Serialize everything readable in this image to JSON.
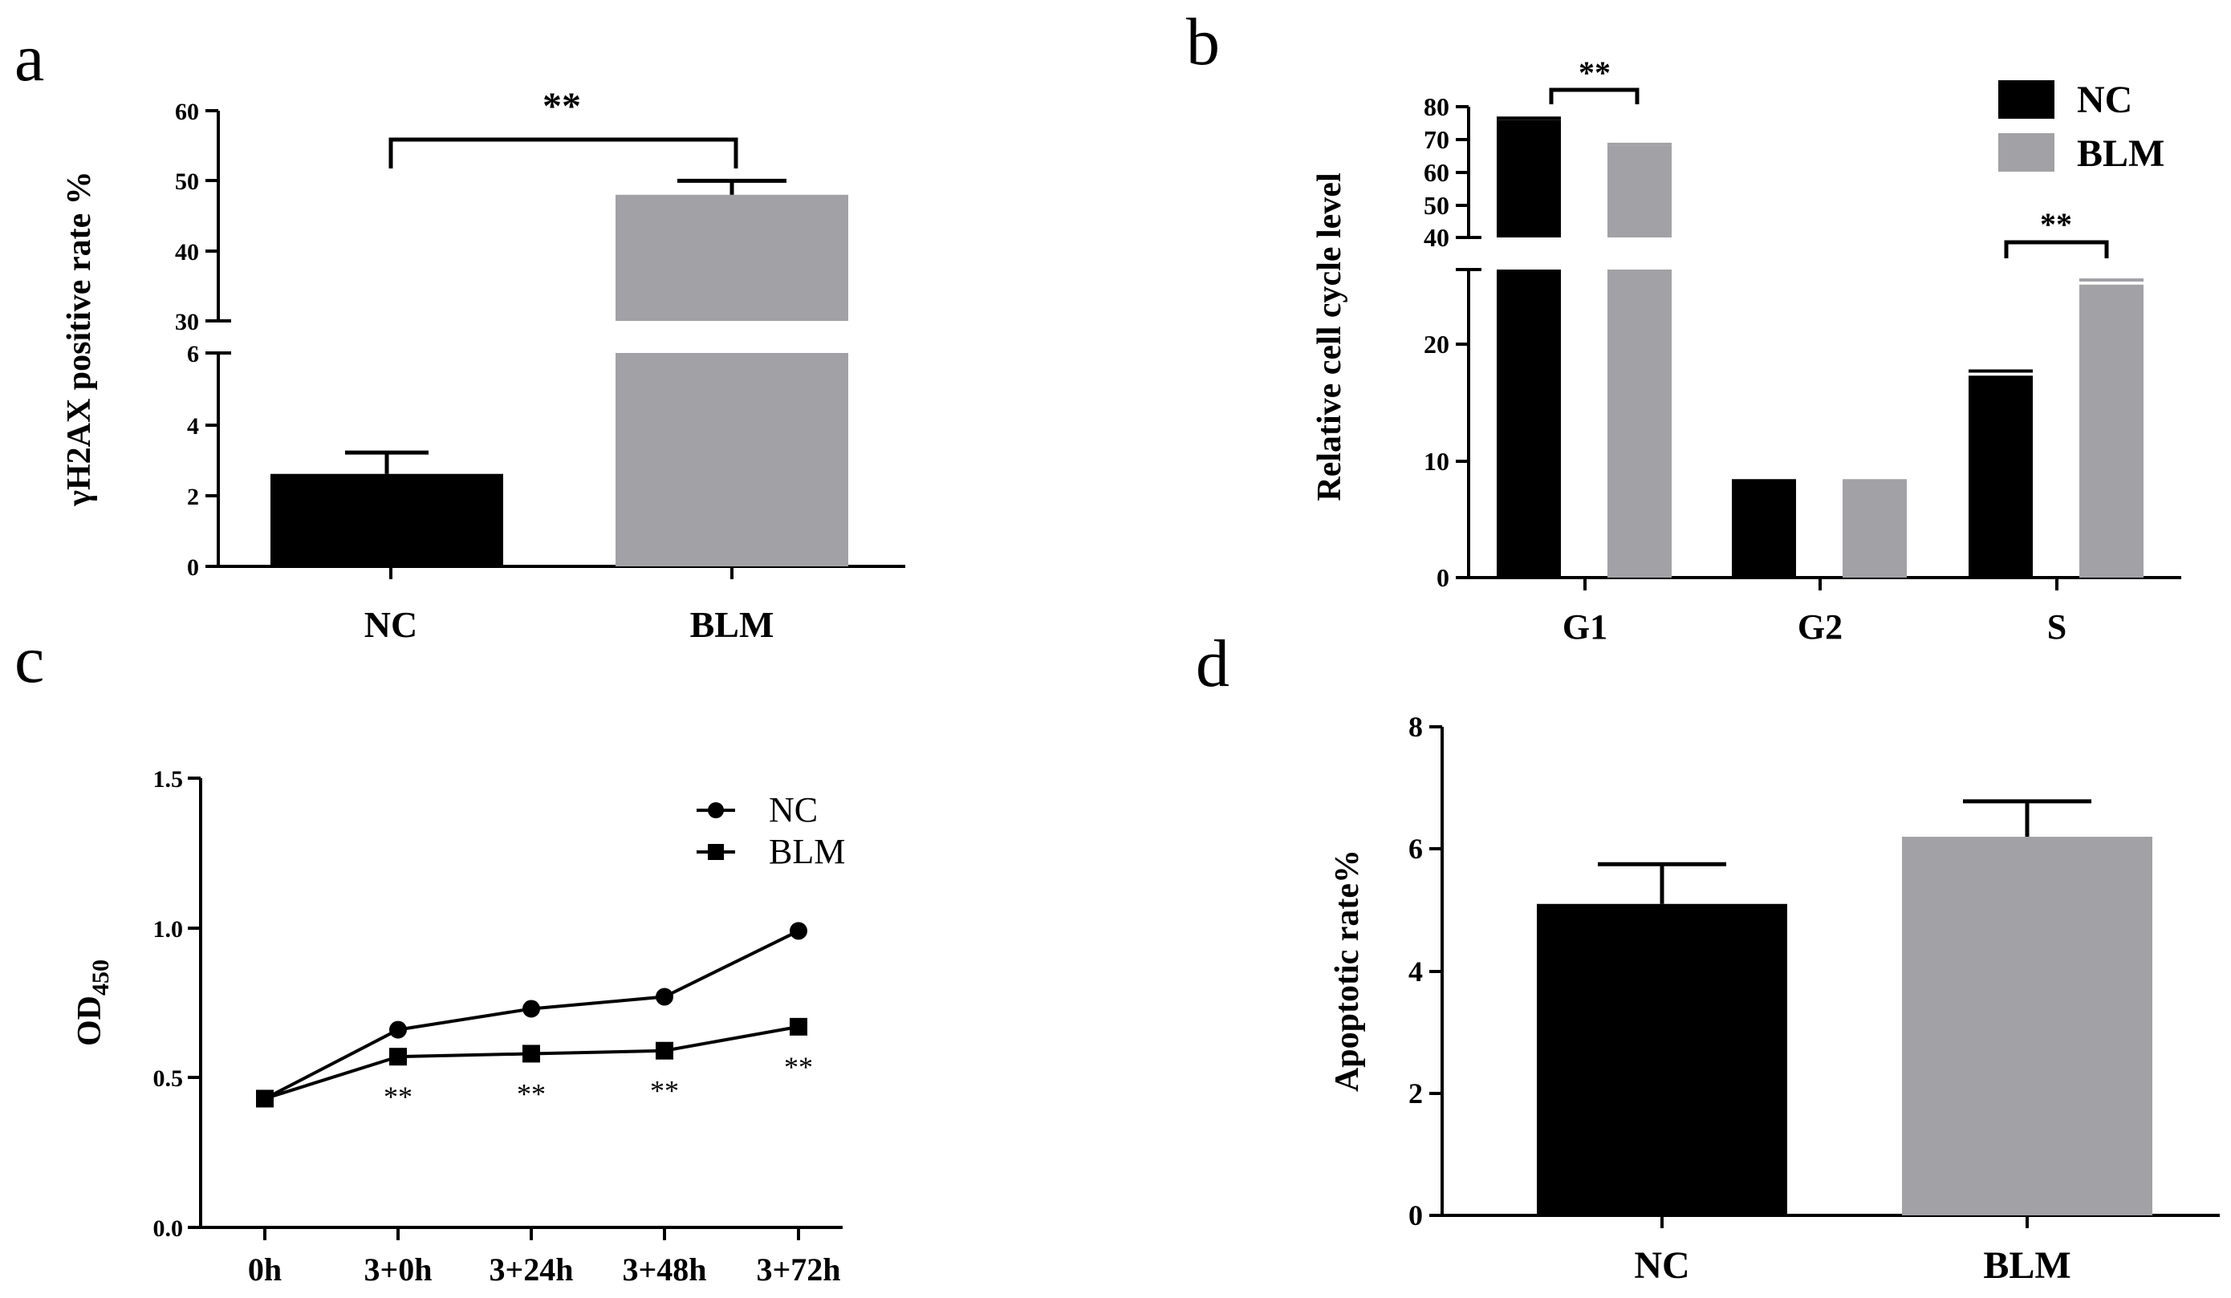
{
  "figure": {
    "panel_letters": [
      "a",
      "b",
      "c",
      "d"
    ],
    "colors": {
      "nc": "#000000",
      "blm": "#a2a2a6",
      "axis": "#000000"
    }
  },
  "chart_data": [
    {
      "panel": "a",
      "type": "bar",
      "ylabel": "γH2AX positive rate %",
      "categories": [
        "NC",
        "BLM"
      ],
      "values": [
        2.6,
        48.0
      ],
      "errors": [
        0.6,
        2.0
      ],
      "y_axis_break": {
        "lower": [
          0,
          6
        ],
        "upper": [
          30,
          60
        ]
      },
      "ticks_lower": [
        "0",
        "2",
        "4",
        "6"
      ],
      "ticks_upper": [
        "30",
        "40",
        "50",
        "60"
      ],
      "significance": "**"
    },
    {
      "panel": "b",
      "type": "bar",
      "ylabel": "Relative cell cycle level",
      "categories": [
        "G1",
        "G2",
        "S"
      ],
      "series": [
        {
          "name": "NC",
          "values": [
            76.0,
            8.2,
            17.3
          ],
          "errors": [
            0.3,
            0.1,
            0.4
          ]
        },
        {
          "name": "BLM",
          "values": [
            68.0,
            8.2,
            25.1
          ],
          "errors": [
            0.3,
            0.1,
            0.4
          ]
        }
      ],
      "y_axis_break": {
        "lower": [
          0,
          26
        ],
        "upper": [
          40,
          80
        ]
      },
      "ticks_lower": [
        "0",
        "10",
        "20"
      ],
      "ticks_upper": [
        "40",
        "50",
        "60",
        "70",
        "80"
      ],
      "legend": [
        "NC",
        "BLM"
      ],
      "significance": [
        "**",
        "**"
      ]
    },
    {
      "panel": "c",
      "type": "line",
      "ylabel_main": "OD",
      "ylabel_sub": "450",
      "categories": [
        "0h",
        "3+0h",
        "3+24h",
        "3+48h",
        "3+72h"
      ],
      "series": [
        {
          "name": "NC",
          "marker": "circle",
          "values": [
            0.43,
            0.66,
            0.73,
            0.77,
            0.99
          ]
        },
        {
          "name": "BLM",
          "marker": "square",
          "values": [
            0.43,
            0.57,
            0.58,
            0.59,
            0.67
          ]
        }
      ],
      "ylim": [
        0,
        1.5
      ],
      "ticks": [
        "0.0",
        "0.5",
        "1.0",
        "1.5"
      ],
      "legend": [
        "NC",
        "BLM"
      ],
      "significance": [
        "",
        "**",
        "**",
        "**",
        "**"
      ]
    },
    {
      "panel": "d",
      "type": "bar",
      "ylabel": "Apoptotic rate%",
      "categories": [
        "NC",
        "BLM"
      ],
      "values": [
        5.1,
        6.2
      ],
      "errors": [
        0.65,
        0.58
      ],
      "ylim": [
        0,
        8
      ],
      "ticks": [
        "0",
        "2",
        "4",
        "6",
        "8"
      ]
    }
  ]
}
